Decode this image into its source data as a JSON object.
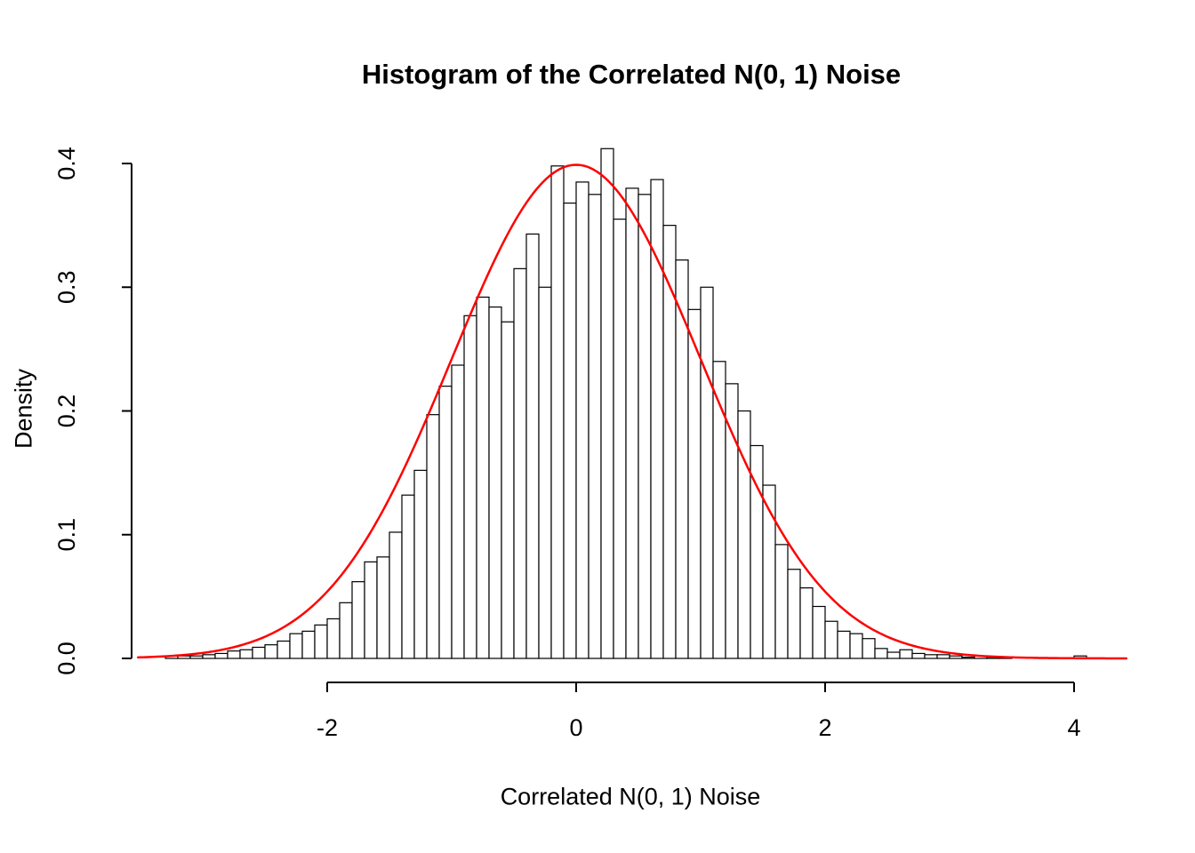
{
  "chart_data": {
    "type": "bar",
    "subtype": "histogram",
    "title": "Histogram of the Correlated N(0, 1) Noise",
    "xlabel": "Correlated N(0, 1) Noise",
    "ylabel": "Density",
    "x_ticks": [
      -2,
      0,
      2,
      4
    ],
    "x_tick_labels": [
      "-2",
      "0",
      "2",
      "4"
    ],
    "y_ticks": [
      0.0,
      0.1,
      0.2,
      0.3,
      0.4
    ],
    "y_tick_labels": [
      "0.0",
      "0.1",
      "0.2",
      "0.3",
      "0.4"
    ],
    "xlim": [
      -3.6,
      4.45
    ],
    "ylim": [
      0,
      0.41
    ],
    "grid": false,
    "legend": "none",
    "bin_start": -3.3,
    "bin_width": 0.1,
    "densities": [
      0.002,
      0.002,
      0.002,
      0.003,
      0.004,
      0.006,
      0.007,
      0.009,
      0.011,
      0.014,
      0.02,
      0.022,
      0.027,
      0.032,
      0.045,
      0.062,
      0.078,
      0.082,
      0.102,
      0.132,
      0.152,
      0.197,
      0.22,
      0.237,
      0.277,
      0.292,
      0.284,
      0.272,
      0.315,
      0.343,
      0.3,
      0.398,
      0.368,
      0.385,
      0.375,
      0.412,
      0.355,
      0.38,
      0.375,
      0.387,
      0.35,
      0.322,
      0.282,
      0.3,
      0.24,
      0.222,
      0.2,
      0.172,
      0.14,
      0.092,
      0.072,
      0.057,
      0.042,
      0.03,
      0.022,
      0.02,
      0.016,
      0.008,
      0.005,
      0.007,
      0.004,
      0.003,
      0.003,
      0.002,
      0.001,
      0.002,
      0.001,
      0.001,
      0.0,
      0.0,
      0.0,
      0.0,
      0.0,
      0.002
    ],
    "curve": {
      "label": "normal-density-curve",
      "distribution": "normal",
      "mean": 0,
      "sd": 1,
      "x_min": -3.52,
      "x_max": 4.42,
      "color": "#ff0000"
    },
    "colors": {
      "bar_fill": "#ffffff",
      "bar_stroke": "#000000",
      "axis": "#000000",
      "background": "#ffffff"
    }
  }
}
